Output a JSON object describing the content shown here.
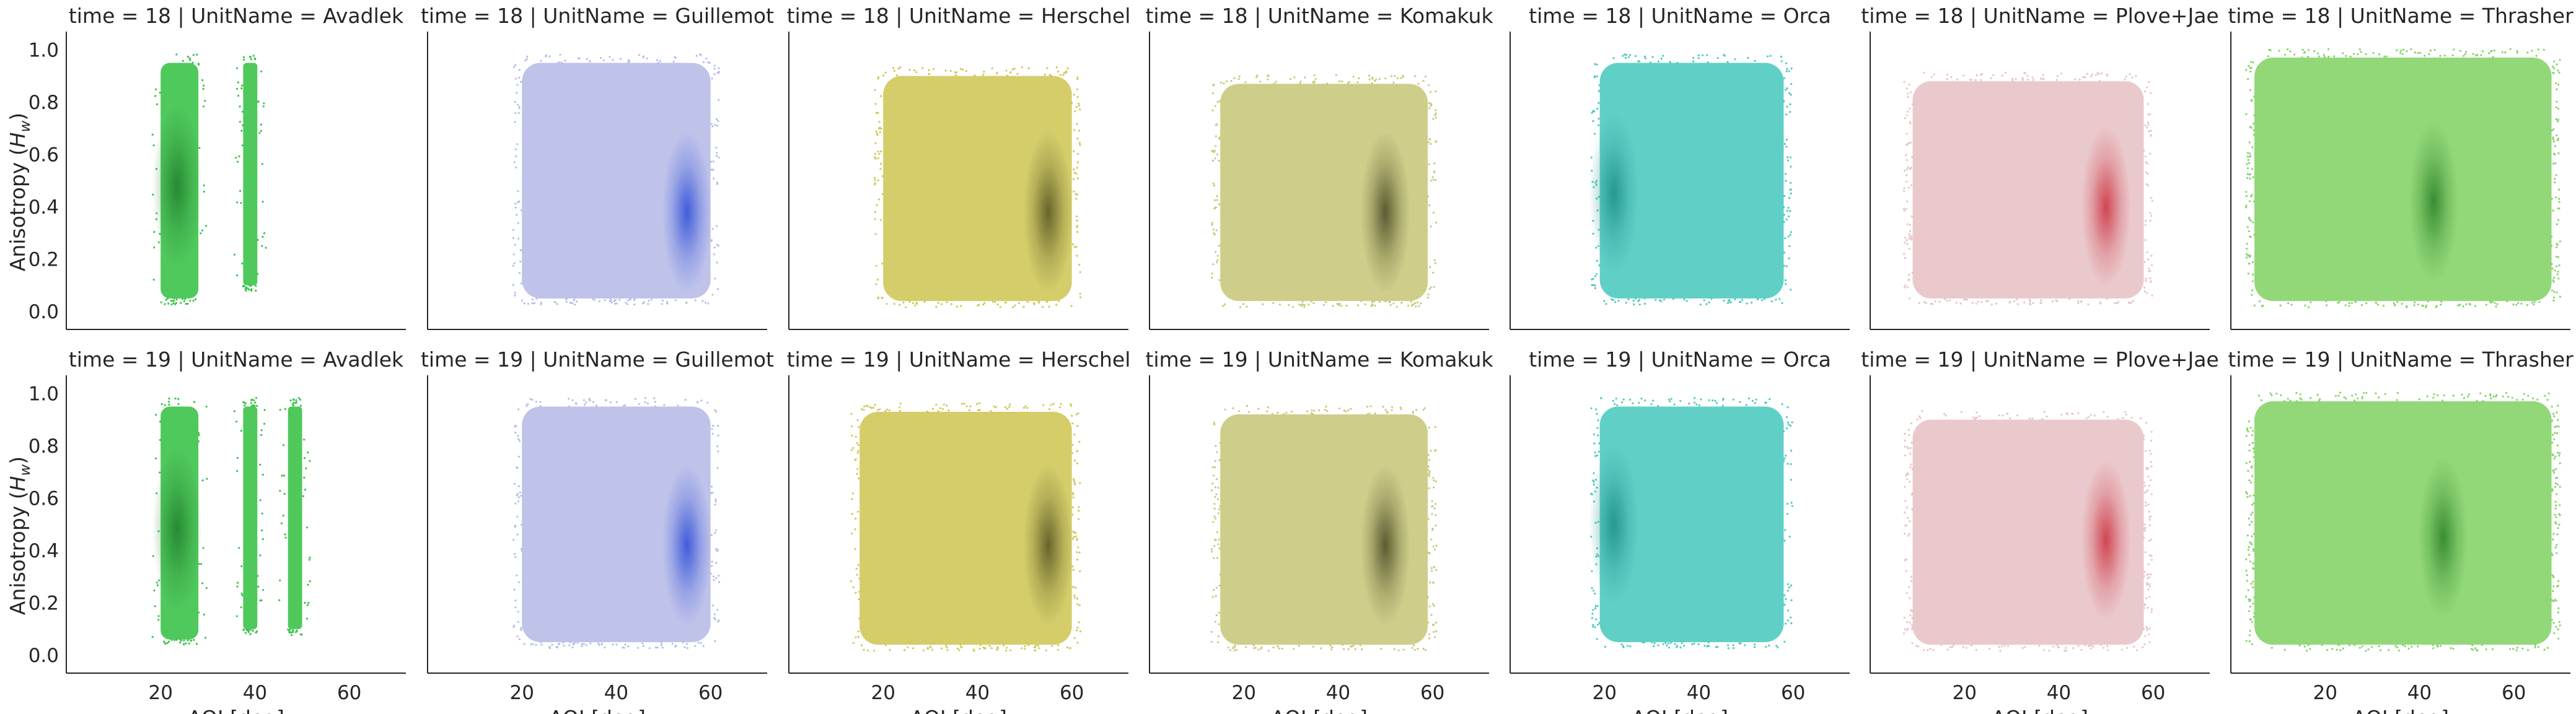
{
  "chart_data": {
    "type": "scatter",
    "xlabel": "AOI [deg]",
    "ylabel": "Anisotropy (H_w)",
    "xlim": [
      0,
      72
    ],
    "ylim": [
      -0.04,
      1.06
    ],
    "xticks": [
      20,
      40,
      60
    ],
    "yticks": [
      0.0,
      0.2,
      0.4,
      0.6,
      0.8,
      1.0
    ],
    "grid": false,
    "legend": "none",
    "facet_row_var": "time",
    "facet_col_var": "UnitName",
    "rows": [
      18,
      19
    ],
    "columns": [
      "Avadlek",
      "Guillemot",
      "Herschel",
      "Komakuk",
      "Orca",
      "Plove+Jae",
      "Thrasher"
    ],
    "panels": [
      {
        "title": "time = 18 | UnitName = Avadlek",
        "time": 18,
        "unit": "Avadlek",
        "color": "#3cc24a",
        "bands": [
          {
            "x": [
              20,
              28
            ],
            "y": [
              0.05,
              0.95
            ]
          },
          {
            "x": [
              37.5,
              40.5
            ],
            "y": [
              0.1,
              0.95
            ]
          }
        ],
        "dense": [
          23.5,
          0.48
        ],
        "dark": "#1f7f2a"
      },
      {
        "title": "time = 18 | UnitName = Guillemot",
        "time": 18,
        "unit": "Guillemot",
        "color": "#b8bde8",
        "bands": [
          {
            "x": [
              20,
              60
            ],
            "y": [
              0.05,
              0.95
            ]
          }
        ],
        "dense": [
          55,
          0.38
        ],
        "dark": "#2a4ad8"
      },
      {
        "title": "time = 18 | UnitName = Herschel",
        "time": 18,
        "unit": "Herschel",
        "color": "#cfc85a",
        "bands": [
          {
            "x": [
              20,
              60
            ],
            "y": [
              0.04,
              0.9
            ]
          }
        ],
        "dense": [
          55,
          0.38
        ],
        "dark": "#55521f"
      },
      {
        "title": "time = 18 | UnitName = Komakuk",
        "time": 18,
        "unit": "Komakuk",
        "color": "#c9c97d",
        "bands": [
          {
            "x": [
              15,
              59
            ],
            "y": [
              0.04,
              0.87
            ]
          }
        ],
        "dense": [
          50,
          0.38
        ],
        "dark": "#474722"
      },
      {
        "title": "time = 18 | UnitName = Orca",
        "time": 18,
        "unit": "Orca",
        "color": "#4fcbc1",
        "bands": [
          {
            "x": [
              19,
              58
            ],
            "y": [
              0.05,
              0.95
            ]
          }
        ],
        "dense": [
          22,
          0.45
        ],
        "dark": "#1c8e86"
      },
      {
        "title": "time = 18 | UnitName = Plove+Jae",
        "time": 18,
        "unit": "Plove+Jae",
        "color": "#e8c3c6",
        "bands": [
          {
            "x": [
              9,
              58
            ],
            "y": [
              0.05,
              0.88
            ]
          }
        ],
        "dense": [
          50,
          0.4
        ],
        "dark": "#cc2e3d"
      },
      {
        "title": "time = 18 | UnitName = Thrasher",
        "time": 18,
        "unit": "Thrasher",
        "color": "#86d46a",
        "bands": [
          {
            "x": [
              5,
              68
            ],
            "y": [
              0.04,
              0.97
            ]
          }
        ],
        "dense": [
          43,
          0.42
        ],
        "dark": "#2a8026"
      },
      {
        "title": "time = 19 | UnitName = Avadlek",
        "time": 19,
        "unit": "Avadlek",
        "color": "#3cc24a",
        "bands": [
          {
            "x": [
              20,
              28
            ],
            "y": [
              0.06,
              0.95
            ]
          },
          {
            "x": [
              37.5,
              40.5
            ],
            "y": [
              0.1,
              0.95
            ]
          },
          {
            "x": [
              47,
              50
            ],
            "y": [
              0.1,
              0.95
            ]
          }
        ],
        "dense": [
          23.5,
          0.48
        ],
        "dark": "#1f7f2a"
      },
      {
        "title": "time = 19 | UnitName = Guillemot",
        "time": 19,
        "unit": "Guillemot",
        "color": "#b8bde8",
        "bands": [
          {
            "x": [
              20,
              60
            ],
            "y": [
              0.05,
              0.95
            ]
          }
        ],
        "dense": [
          55,
          0.42
        ],
        "dark": "#2a4ad8"
      },
      {
        "title": "time = 19 | UnitName = Herschel",
        "time": 19,
        "unit": "Herschel",
        "color": "#cfc85a",
        "bands": [
          {
            "x": [
              15,
              60
            ],
            "y": [
              0.04,
              0.93
            ]
          }
        ],
        "dense": [
          55,
          0.42
        ],
        "dark": "#55521f"
      },
      {
        "title": "time = 19 | UnitName = Komakuk",
        "time": 19,
        "unit": "Komakuk",
        "color": "#c9c97d",
        "bands": [
          {
            "x": [
              15,
              59
            ],
            "y": [
              0.04,
              0.92
            ]
          }
        ],
        "dense": [
          50,
          0.42
        ],
        "dark": "#474722"
      },
      {
        "title": "time = 19 | UnitName = Orca",
        "time": 19,
        "unit": "Orca",
        "color": "#4fcbc1",
        "bands": [
          {
            "x": [
              19,
              58
            ],
            "y": [
              0.05,
              0.95
            ]
          }
        ],
        "dense": [
          22,
          0.5
        ],
        "dark": "#1c8e86"
      },
      {
        "title": "time = 19 | UnitName = Plove+Jae",
        "time": 19,
        "unit": "Plove+Jae",
        "color": "#e8c3c6",
        "bands": [
          {
            "x": [
              9,
              58
            ],
            "y": [
              0.04,
              0.9
            ]
          }
        ],
        "dense": [
          50,
          0.44
        ],
        "dark": "#cc2e3d"
      },
      {
        "title": "time = 19 | UnitName = Thrasher",
        "time": 19,
        "unit": "Thrasher",
        "color": "#86d46a",
        "bands": [
          {
            "x": [
              5,
              68
            ],
            "y": [
              0.04,
              0.97
            ]
          }
        ],
        "dense": [
          45,
          0.45
        ],
        "dark": "#2a8026"
      }
    ]
  }
}
